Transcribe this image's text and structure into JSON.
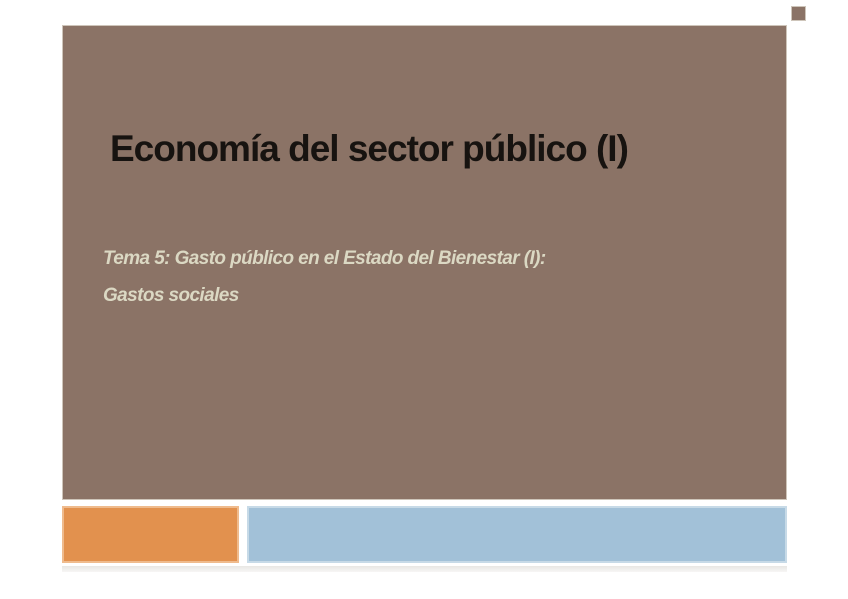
{
  "slide": {
    "title": "Economía del sector público (I)",
    "subtitle_line1": "Tema 5: Gasto público en el Estado del Bienestar (I):",
    "subtitle_line2": "Gastos sociales"
  },
  "colors": {
    "background": "#FFFFFF",
    "panel_brown": "#8B7366",
    "panel_border": "#CEC5BA",
    "title_text": "#171310",
    "subtitle_text": "#DBD8C3",
    "accent_orange": "#E2914E",
    "accent_blue": "#A2C1D8",
    "reflection_gray": "#E8E7E4"
  }
}
